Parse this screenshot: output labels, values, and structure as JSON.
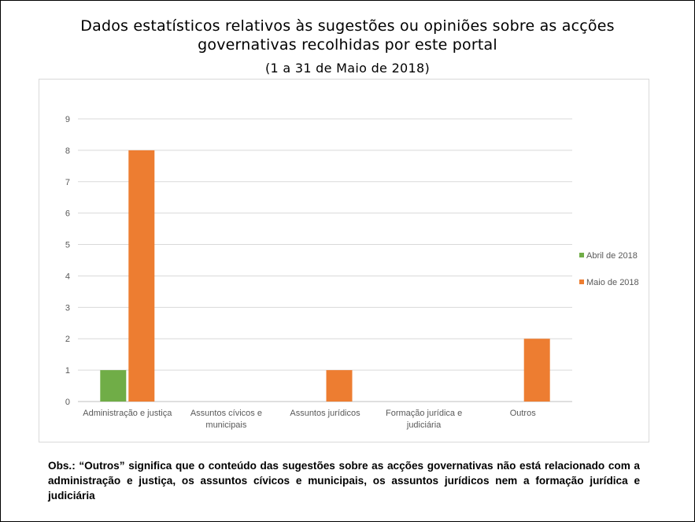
{
  "header": {
    "title_line1": "Dados estatísticos relativos às sugestões ou opiniões sobre as acções",
    "title_line2": "governativas recolhidas por este portal",
    "subtitle": "(1 a 31 de Maio de 2018)"
  },
  "chart_data": {
    "type": "bar",
    "categories": [
      [
        "Administração e justiça"
      ],
      [
        "Assuntos cívicos e",
        "municipais"
      ],
      [
        "Assuntos jurídicos"
      ],
      [
        "Formação jurídica e",
        "judiciária"
      ],
      [
        "Outros"
      ]
    ],
    "series": [
      {
        "name": "Abril de 2018",
        "color": "#70ad47",
        "values": [
          1,
          0,
          0,
          0,
          0
        ]
      },
      {
        "name": "Maio de 2018",
        "color": "#ed7d31",
        "values": [
          8,
          0,
          1,
          0,
          2
        ]
      }
    ],
    "ylim": [
      0,
      9
    ],
    "yticks": [
      0,
      1,
      2,
      3,
      4,
      5,
      6,
      7,
      8,
      9
    ],
    "grid": true,
    "legend": "right"
  },
  "footer": {
    "note": "Obs.: “Outros” significa que o conteúdo das sugestões sobre as acções governativas não está relacionado com a administração e justiça, os assuntos cívicos e municipais, os assuntos jurídicos nem a formação jurídica e judiciária"
  }
}
